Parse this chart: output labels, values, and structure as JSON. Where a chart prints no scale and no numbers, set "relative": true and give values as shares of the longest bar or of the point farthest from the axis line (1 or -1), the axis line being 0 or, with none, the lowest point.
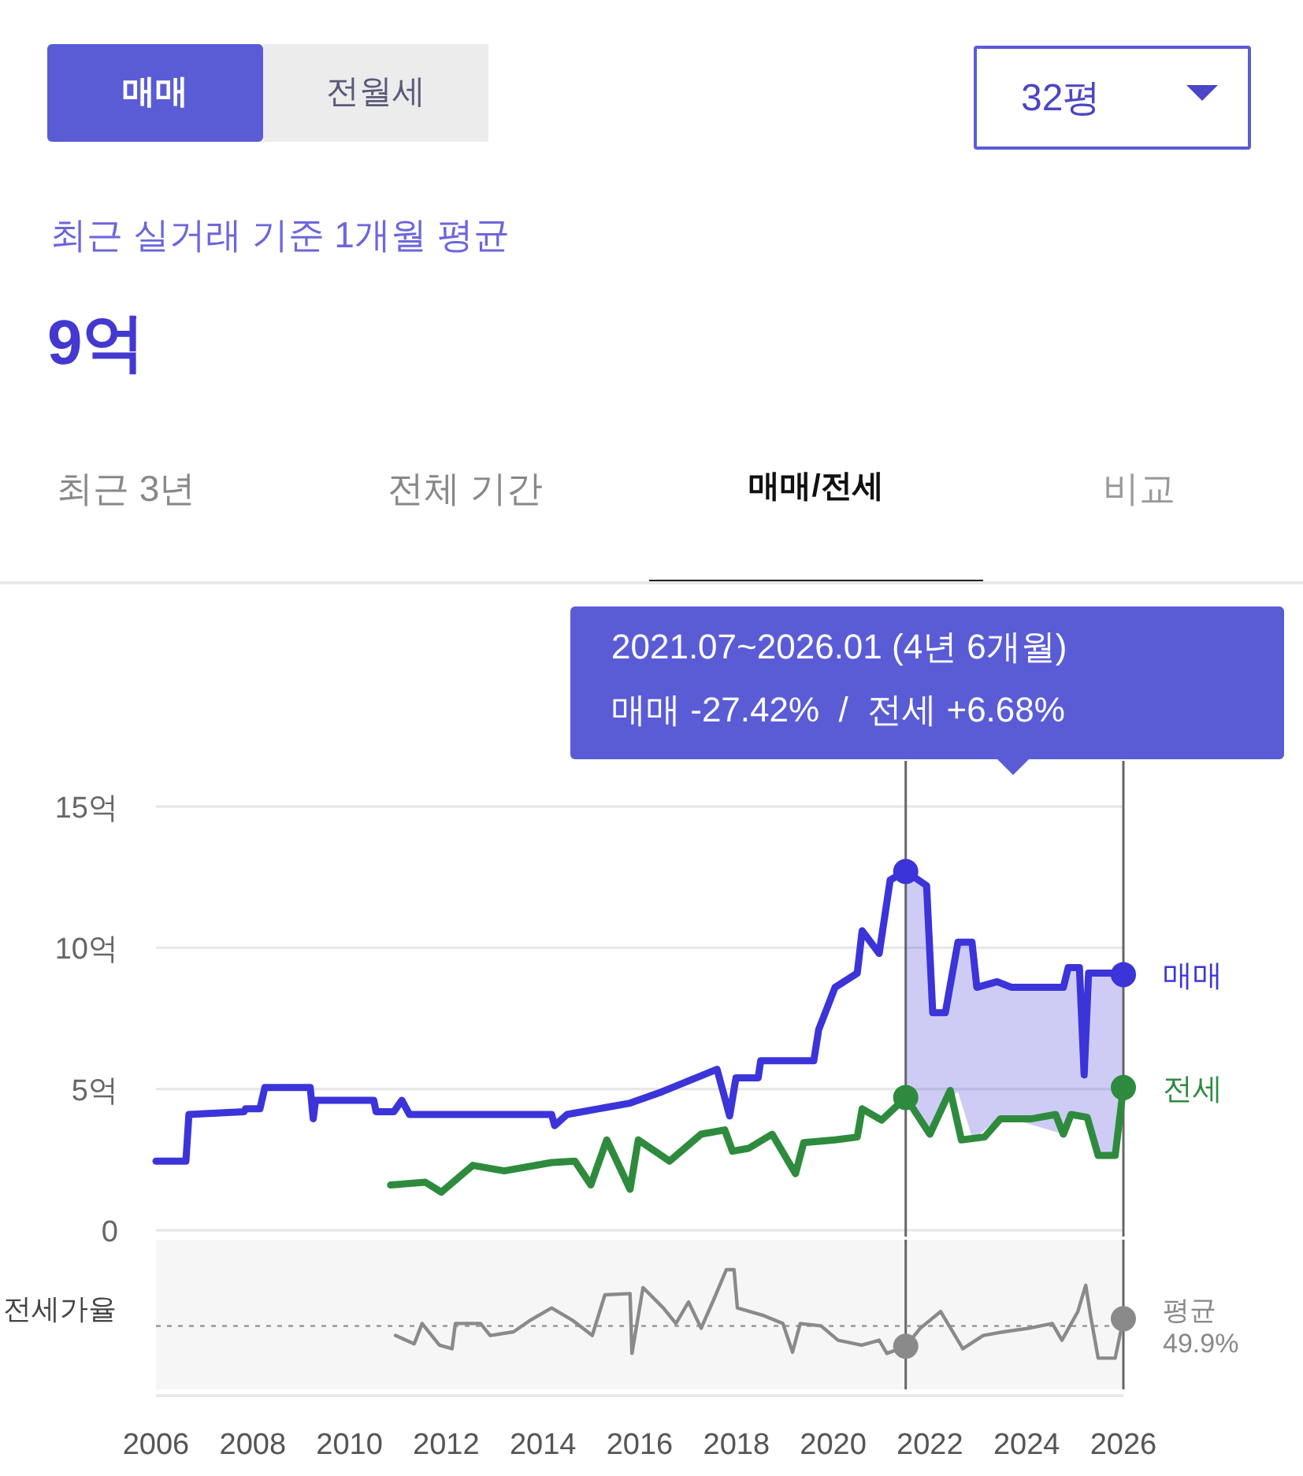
{
  "chart_data": [
    {
      "type": "other",
      "title": "9억",
      "subtitle": "최근 실거래 기준 1개월 평균",
      "annotations": [
        "매매",
        "전월세",
        "32평",
        "최근 3년",
        "전체 기간",
        "매매/전세",
        "비교"
      ]
    },
    {
      "type": "line",
      "xlim": [
        2006,
        2026
      ],
      "ylim": [
        0,
        15
      ],
      "yticks": [
        0,
        {
          "value": 5,
          "label": "5억"
        },
        {
          "value": 10,
          "label": "10억"
        },
        {
          "value": 15,
          "label": "15억"
        }
      ],
      "grid": "y",
      "tick_labels": "y",
      "annotations": [
        "2021.07~2026.01 (4년 6개월)",
        "매매 -27.42%  /  전세 +6.68%"
      ],
      "ref_lines": [
        {
          "axis": "x",
          "value": 2021.5,
          "color": "#666666"
        },
        {
          "axis": "x",
          "value": 2026.0,
          "color": "#666666"
        }
      ],
      "series": [
        {
          "name": "매매",
          "type": "line",
          "color": "#3b34d9",
          "x": [
            2006.0,
            2006.62,
            2006.68,
            2007.82,
            2007.85,
            2008.15,
            2008.25,
            2009.19,
            2009.25,
            2009.3,
            2009.45,
            2010.5,
            2010.55,
            2010.92,
            2011.08,
            2011.24,
            2011.5,
            2014.18,
            2014.24,
            2014.5,
            2015.8,
            2016.46,
            2017.6,
            2017.86,
            2017.99,
            2018.45,
            2018.5,
            2019.6,
            2019.7,
            2020.04,
            2020.5,
            2020.6,
            2020.95,
            2021.18,
            2021.5,
            2021.93,
            2022.06,
            2022.32,
            2022.58,
            2022.87,
            2022.97,
            2023.39,
            2023.69,
            2024.76,
            2024.86,
            2025.09,
            2025.19,
            2025.28,
            2025.48,
            2025.83,
            2026.0
          ],
          "values": [
            2.45,
            2.45,
            4.1,
            4.2,
            4.3,
            4.3,
            5.05,
            5.05,
            3.95,
            4.6,
            4.6,
            4.6,
            4.2,
            4.2,
            4.6,
            4.1,
            4.1,
            4.1,
            3.7,
            4.1,
            4.5,
            4.9,
            5.7,
            4.05,
            5.4,
            5.4,
            6.0,
            6.0,
            7.1,
            8.6,
            9.1,
            10.6,
            9.8,
            12.4,
            12.7,
            12.2,
            7.7,
            7.7,
            10.2,
            10.2,
            8.6,
            8.8,
            8.6,
            8.6,
            9.3,
            9.3,
            5.5,
            9.1,
            9.1,
            9.1,
            9.05
          ],
          "upper": [
            null,
            null,
            null,
            null,
            null,
            null,
            null,
            null,
            null,
            null,
            null,
            null,
            null,
            null,
            null,
            null,
            null,
            null,
            null,
            null,
            null,
            null,
            null,
            null,
            null,
            null,
            null,
            null,
            null,
            null,
            null,
            null,
            null,
            null,
            12.7,
            12.2,
            7.7,
            7.7,
            10.2,
            10.2,
            8.6,
            8.8,
            8.6,
            8.6,
            9.3,
            9.3,
            5.5,
            9.1,
            9.1,
            9.1,
            9.05
          ],
          "lower": [
            null,
            null,
            null,
            null,
            null,
            null,
            null,
            null,
            null,
            null,
            null,
            null,
            null,
            null,
            null,
            null,
            null,
            null,
            null,
            null,
            null,
            null,
            null,
            null,
            null,
            null,
            null,
            null,
            null,
            null,
            null,
            null,
            null,
            null,
            4.7,
            3.4,
            3.6,
            4.6,
            4.9,
            3.3,
            3.3,
            3.95,
            3.95,
            3.4,
            4.1,
            4.0,
            4.0,
            4.0,
            2.65,
            2.65,
            5.05
          ]
        },
        {
          "name": "전세",
          "type": "line",
          "color": "#2e8b3e",
          "x": [
            2010.85,
            2011.57,
            2011.9,
            2012.55,
            2013.2,
            2014.18,
            2014.66,
            2014.99,
            2015.32,
            2015.8,
            2015.97,
            2016.62,
            2017.27,
            2017.76,
            2017.92,
            2018.25,
            2018.74,
            2019.22,
            2019.39,
            2020.04,
            2020.5,
            2020.6,
            2021.0,
            2021.5,
            2022.0,
            2022.42,
            2022.65,
            2023.13,
            2023.46,
            2024.11,
            2024.6,
            2024.76,
            2024.92,
            2025.25,
            2025.48,
            2025.83,
            2026.0
          ],
          "values": [
            1.6,
            1.7,
            1.35,
            2.3,
            2.1,
            2.4,
            2.45,
            1.6,
            3.2,
            1.45,
            3.2,
            2.45,
            3.4,
            3.55,
            2.8,
            2.9,
            3.4,
            2.0,
            3.1,
            3.2,
            3.3,
            4.3,
            3.9,
            4.7,
            3.4,
            4.95,
            3.2,
            3.3,
            3.95,
            3.95,
            4.1,
            3.4,
            4.1,
            4.0,
            2.65,
            2.65,
            5.05
          ]
        },
        {
          "type": "scatter",
          "color": "#3b34d9",
          "x": [
            2021.5,
            2026.0
          ],
          "values": [
            12.7,
            9.05
          ]
        },
        {
          "type": "scatter",
          "color": "#2e8b3e",
          "x": [
            2021.5,
            2026.0
          ],
          "values": [
            4.7,
            5.05
          ]
        }
      ]
    },
    {
      "type": "line",
      "relative": true,
      "xlim": [
        2006,
        2026
      ],
      "xticks": [
        2006,
        2008,
        2010,
        2012,
        2014,
        2016,
        2018,
        2020,
        2022,
        2024,
        2026
      ],
      "tick_labels": "x",
      "ylabel": "전세가율",
      "ref_lines": [
        {
          "axis": "x",
          "value": 2021.5,
          "color": "#666666"
        },
        {
          "axis": "x",
          "value": 2026.0,
          "color": "#666666"
        },
        {
          "axis": "y",
          "value": 0.53,
          "label": "평균\n49.9%",
          "color": "#999999",
          "line_style": "dotted"
        }
      ],
      "series": [
        {
          "type": "line",
          "color": "#8a8a8a",
          "x": [
            2010.95,
            2011.34,
            2011.5,
            2011.86,
            2012.12,
            2012.19,
            2012.71,
            2012.91,
            2013.39,
            2013.75,
            2014.18,
            2014.6,
            2015.02,
            2015.28,
            2015.8,
            2015.84,
            2016.07,
            2016.49,
            2016.75,
            2017.01,
            2017.27,
            2017.53,
            2017.79,
            2017.95,
            2018.02,
            2018.54,
            2018.96,
            2019.16,
            2019.32,
            2019.75,
            2020.1,
            2020.59,
            2020.95,
            2021.11,
            2021.5,
            2021.8,
            2022.22,
            2022.68,
            2023.1,
            2023.52,
            2024.05,
            2024.53,
            2024.73,
            2025.06,
            2025.22,
            2025.32,
            2025.48,
            2025.83,
            2026.0
          ],
          "values": [
            0.45,
            0.38,
            0.55,
            0.37,
            0.34,
            0.55,
            0.55,
            0.45,
            0.48,
            0.58,
            0.68,
            0.58,
            0.45,
            0.79,
            0.8,
            0.3,
            0.85,
            0.68,
            0.55,
            0.73,
            0.51,
            0.75,
            1,
            1,
            0.68,
            0.62,
            0.55,
            0.31,
            0.55,
            0.53,
            0.41,
            0.37,
            0.41,
            0.3,
            0.36,
            0.51,
            0.65,
            0.34,
            0.45,
            0.48,
            0.51,
            0.55,
            0.41,
            0.65,
            0.87,
            0.62,
            0.26,
            0.26,
            0.59
          ]
        },
        {
          "type": "scatter",
          "color": "#8a8a8a",
          "x": [
            2021.5,
            2026.0
          ],
          "values": [
            0.36,
            0.59
          ]
        }
      ]
    }
  ]
}
